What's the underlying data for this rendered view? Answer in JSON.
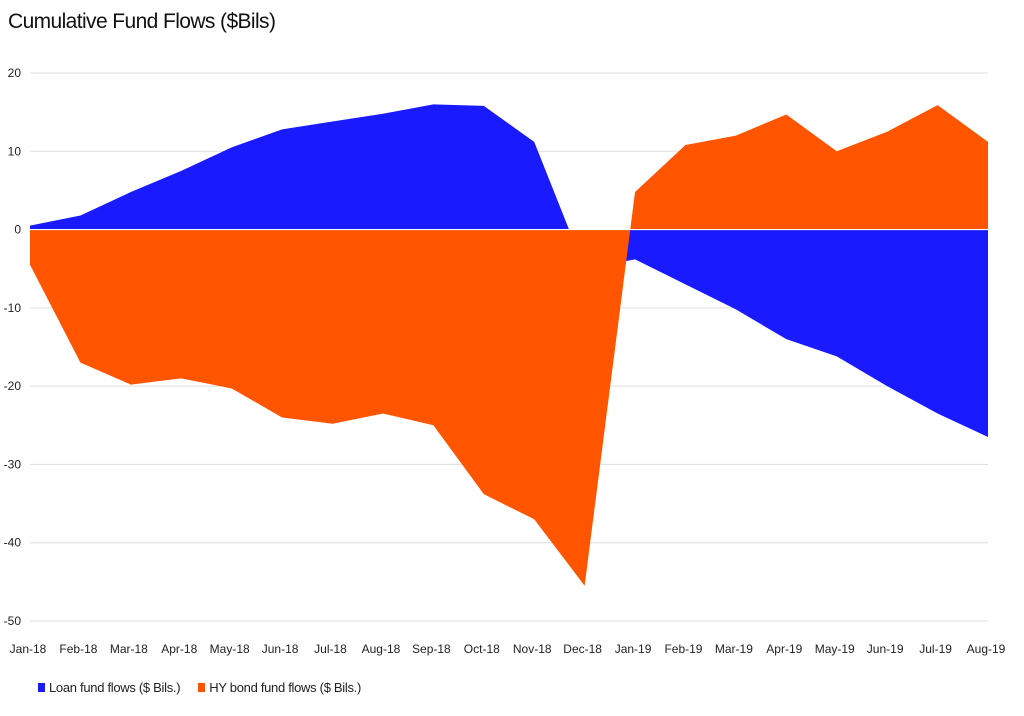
{
  "chart_data": {
    "type": "area",
    "title": "Cumulative Fund Flows ($Bils)",
    "xlabel": "",
    "ylabel": "",
    "ylim": [
      -50,
      20
    ],
    "yticks": [
      20,
      10,
      0,
      -10,
      -20,
      -30,
      -40,
      -50
    ],
    "grid": true,
    "legend_position": "bottom-left",
    "categories": [
      "Jan-18",
      "Feb-18",
      "Mar-18",
      "Apr-18",
      "May-18",
      "Jun-18",
      "Jul-18",
      "Aug-18",
      "Sep-18",
      "Oct-18",
      "Nov-18",
      "Dec-18",
      "Jan-19",
      "Feb-19",
      "Mar-19",
      "Apr-19",
      "May-19",
      "Jun-19",
      "Jul-19",
      "Aug-19"
    ],
    "series": [
      {
        "name": "Loan fund flows ($ Bils.)",
        "color": "#1a1aff",
        "values": [
          0.5,
          1.8,
          4.8,
          7.5,
          10.5,
          12.8,
          13.8,
          14.8,
          16.0,
          15.8,
          11.2,
          -5.0,
          -3.8,
          -7.0,
          -10.2,
          -14.0,
          -16.2,
          -20.0,
          -23.5,
          -26.5
        ]
      },
      {
        "name": "HY bond fund flows ($ Bils.)",
        "color": "#ff5500",
        "values": [
          -4.5,
          -17.0,
          -19.8,
          -19.0,
          -20.3,
          -24.0,
          -24.8,
          -23.5,
          -25.0,
          -33.8,
          -37.0,
          -45.5,
          4.8,
          10.8,
          12.0,
          14.7,
          10.0,
          12.5,
          15.9,
          11.2
        ]
      }
    ]
  }
}
